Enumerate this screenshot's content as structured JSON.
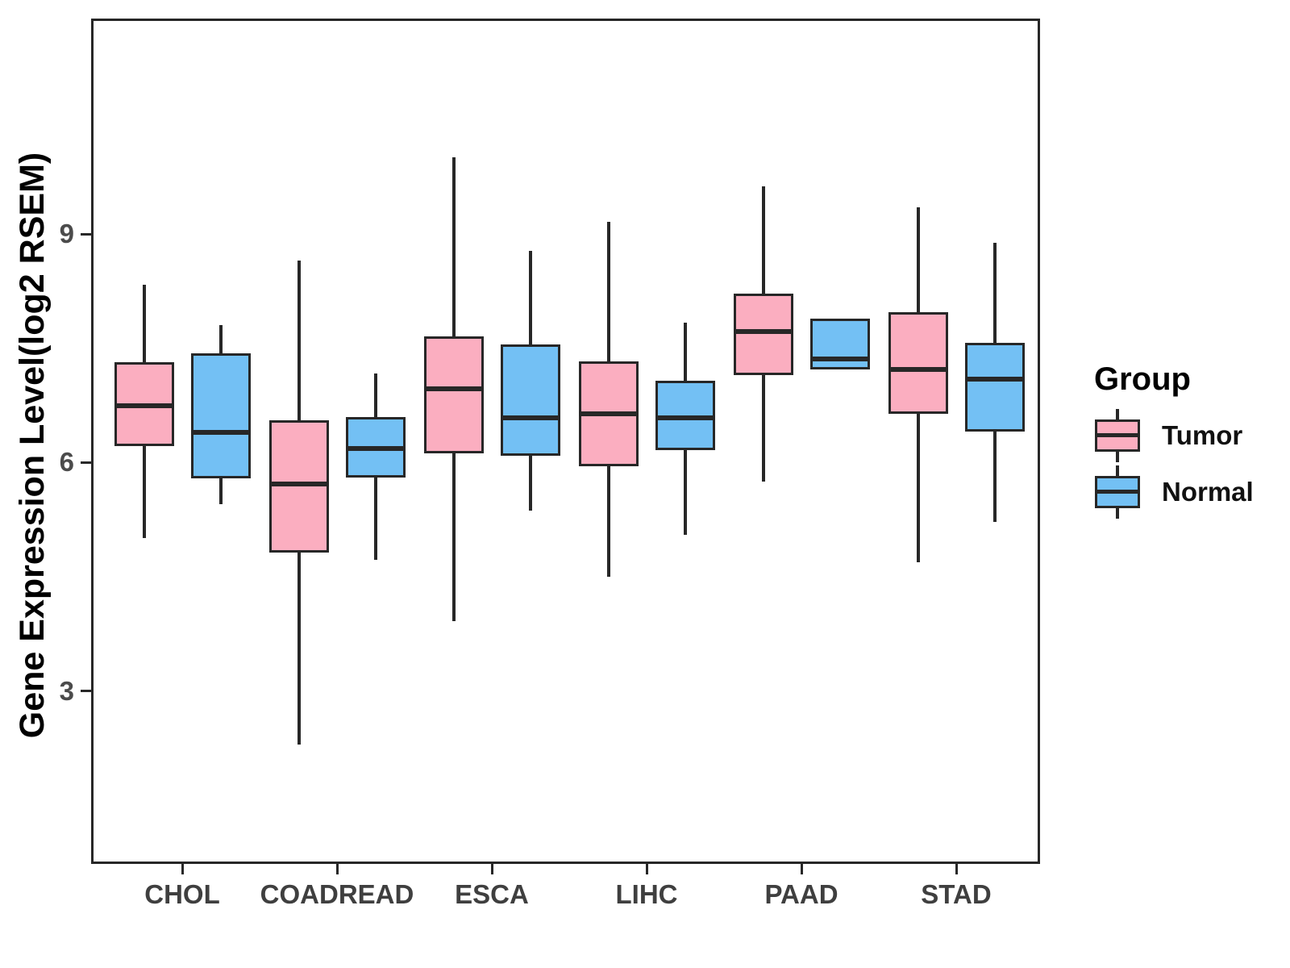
{
  "figure": {
    "background": "#ffffff",
    "panel_border_color": "#272727",
    "line_color": "#272727",
    "axis_text_color": "#4b4b4b",
    "x_label_color": "#3f3f3f"
  },
  "legend": {
    "title": "Group",
    "entries": [
      {
        "label": "Tumor",
        "color": "#FBAEC0"
      },
      {
        "label": "Normal",
        "color": "#73C0F4"
      }
    ]
  },
  "chart_data": {
    "type": "boxplot",
    "title": "",
    "xlabel": "",
    "ylabel": "Gene Expression Level(log2 RSEM)",
    "categories": [
      "CHOL",
      "COADREAD",
      "ESCA",
      "LIHC",
      "PAAD",
      "STAD"
    ],
    "yticks": [
      3,
      6,
      9
    ],
    "ylim": [
      0.73,
      11.83
    ],
    "grid": false,
    "legend_position": "right",
    "series": [
      {
        "name": "Tumor",
        "color": "#FBAEC0",
        "boxes": [
          {
            "whisker_low": 5.01,
            "q1": 6.22,
            "median": 6.75,
            "q3": 7.32,
            "whisker_high": 8.34
          },
          {
            "whisker_low": 2.3,
            "q1": 4.82,
            "median": 5.72,
            "q3": 6.56,
            "whisker_high": 8.65
          },
          {
            "whisker_low": 3.92,
            "q1": 6.12,
            "median": 6.97,
            "q3": 7.66,
            "whisker_high": 10.01
          },
          {
            "whisker_low": 4.5,
            "q1": 5.95,
            "median": 6.64,
            "q3": 7.33,
            "whisker_high": 9.16
          },
          {
            "whisker_low": 5.75,
            "q1": 7.15,
            "median": 7.72,
            "q3": 8.22,
            "whisker_high": 9.63
          },
          {
            "whisker_low": 4.69,
            "q1": 6.64,
            "median": 7.22,
            "q3": 7.97,
            "whisker_high": 9.35
          }
        ]
      },
      {
        "name": "Normal",
        "color": "#73C0F4",
        "boxes": [
          {
            "whisker_low": 5.45,
            "q1": 5.79,
            "median": 6.4,
            "q3": 7.43,
            "whisker_high": 7.81
          },
          {
            "whisker_low": 4.72,
            "q1": 5.8,
            "median": 6.18,
            "q3": 6.6,
            "whisker_high": 7.17
          },
          {
            "whisker_low": 5.37,
            "q1": 6.09,
            "median": 6.59,
            "q3": 7.55,
            "whisker_high": 8.78
          },
          {
            "whisker_low": 5.05,
            "q1": 6.16,
            "median": 6.59,
            "q3": 7.07,
            "whisker_high": 7.84
          },
          {
            "whisker_low": 7.22,
            "q1": 7.22,
            "median": 7.36,
            "q3": 7.89,
            "whisker_high": 7.89
          },
          {
            "whisker_low": 5.22,
            "q1": 6.41,
            "median": 7.1,
            "q3": 7.57,
            "whisker_high": 8.89
          }
        ]
      }
    ]
  }
}
